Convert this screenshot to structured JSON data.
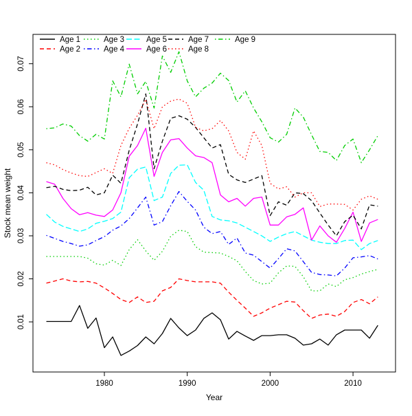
{
  "chart_data": {
    "type": "line",
    "title": "",
    "xlabel": "Year",
    "ylabel": "Stock mean weight",
    "x_ticks": [
      1980,
      1990,
      2000,
      2010
    ],
    "y_ticks": [
      0.01,
      0.02,
      0.03,
      0.04,
      0.05,
      0.06,
      0.07
    ],
    "xlim": [
      1973,
      2013
    ],
    "ylim": [
      0.002,
      0.073
    ],
    "grid": "off",
    "legend_position": "top-inside",
    "axis_color": "#000000",
    "background_color": "#ffffff",
    "x": [
      1973,
      1974,
      1975,
      1976,
      1977,
      1978,
      1979,
      1980,
      1981,
      1982,
      1983,
      1984,
      1985,
      1986,
      1987,
      1988,
      1989,
      1990,
      1991,
      1992,
      1993,
      1994,
      1995,
      1996,
      1997,
      1998,
      1999,
      2000,
      2001,
      2002,
      2003,
      2004,
      2005,
      2006,
      2007,
      2008,
      2009,
      2010,
      2011,
      2012,
      2013
    ],
    "series": [
      {
        "name": "Age 1",
        "color": "#000000",
        "style": "solid",
        "values": [
          0.0101,
          0.0101,
          0.0101,
          0.0101,
          0.0138,
          0.0085,
          0.0109,
          0.004,
          0.0065,
          0.0022,
          0.0032,
          0.0045,
          0.0065,
          0.0049,
          0.0073,
          0.0108,
          0.0086,
          0.0068,
          0.0081,
          0.0108,
          0.0121,
          0.0105,
          0.006,
          0.0078,
          0.0067,
          0.0057,
          0.0068,
          0.0068,
          0.007,
          0.007,
          0.0062,
          0.0046,
          0.0049,
          0.006,
          0.0046,
          0.007,
          0.0081,
          0.0081,
          0.0081,
          0.0062,
          0.0092
        ]
      },
      {
        "name": "Age 2",
        "color": "#ff0000",
        "style": "dashed",
        "values": [
          0.019,
          0.0195,
          0.02,
          0.0195,
          0.0193,
          0.0194,
          0.019,
          0.0179,
          0.0166,
          0.0152,
          0.0145,
          0.0158,
          0.0145,
          0.0148,
          0.0172,
          0.018,
          0.02,
          0.0196,
          0.0193,
          0.0193,
          0.0193,
          0.019,
          0.0169,
          0.015,
          0.0132,
          0.0113,
          0.0121,
          0.0132,
          0.014,
          0.0148,
          0.0146,
          0.0126,
          0.0108,
          0.0116,
          0.0118,
          0.0113,
          0.0124,
          0.0145,
          0.0152,
          0.0142,
          0.0158
        ]
      },
      {
        "name": "Age 3",
        "color": "#00cd00",
        "style": "dotted",
        "values": [
          0.0252,
          0.0252,
          0.0252,
          0.0252,
          0.0252,
          0.0248,
          0.0235,
          0.0232,
          0.0243,
          0.0231,
          0.0268,
          0.0291,
          0.0265,
          0.0243,
          0.0264,
          0.0299,
          0.0313,
          0.031,
          0.0275,
          0.0262,
          0.0261,
          0.026,
          0.0252,
          0.0242,
          0.0217,
          0.0196,
          0.0188,
          0.019,
          0.0214,
          0.023,
          0.0229,
          0.0205,
          0.0172,
          0.0172,
          0.0188,
          0.0182,
          0.0198,
          0.0203,
          0.0211,
          0.0217,
          0.0222
        ]
      },
      {
        "name": "Age 4",
        "color": "#0000ff",
        "style": "dotdash",
        "values": [
          0.0301,
          0.0294,
          0.0287,
          0.0282,
          0.0276,
          0.0279,
          0.0289,
          0.0298,
          0.0313,
          0.0323,
          0.034,
          0.0365,
          0.039,
          0.0325,
          0.0333,
          0.037,
          0.0403,
          0.038,
          0.036,
          0.032,
          0.0305,
          0.031,
          0.028,
          0.0295,
          0.026,
          0.0255,
          0.024,
          0.0225,
          0.0247,
          0.027,
          0.0265,
          0.024,
          0.0215,
          0.021,
          0.0209,
          0.0207,
          0.0225,
          0.0249,
          0.0251,
          0.0254,
          0.0246
        ]
      },
      {
        "name": "Age 5",
        "color": "#00ffff",
        "style": "longdash",
        "values": [
          0.035,
          0.0332,
          0.0322,
          0.0316,
          0.031,
          0.0316,
          0.0329,
          0.0334,
          0.034,
          0.0355,
          0.0435,
          0.0455,
          0.046,
          0.0382,
          0.039,
          0.0445,
          0.0464,
          0.0465,
          0.0424,
          0.0406,
          0.0345,
          0.0337,
          0.0335,
          0.033,
          0.032,
          0.031,
          0.03,
          0.0287,
          0.0297,
          0.0305,
          0.031,
          0.03,
          0.029,
          0.0285,
          0.0282,
          0.0282,
          0.0289,
          0.029,
          0.0268,
          0.0282,
          0.0289
        ]
      },
      {
        "name": "Age 6",
        "color": "#ff00ff",
        "style": "solid",
        "values": [
          0.0426,
          0.042,
          0.0387,
          0.0363,
          0.0349,
          0.0354,
          0.0348,
          0.0345,
          0.036,
          0.04,
          0.0485,
          0.051,
          0.055,
          0.0438,
          0.0494,
          0.0523,
          0.0526,
          0.0504,
          0.0486,
          0.0482,
          0.047,
          0.0395,
          0.0379,
          0.0387,
          0.0369,
          0.0387,
          0.039,
          0.0325,
          0.0325,
          0.0344,
          0.035,
          0.0365,
          0.029,
          0.0323,
          0.03,
          0.0285,
          0.0317,
          0.0355,
          0.0287,
          0.033,
          0.0338
        ]
      },
      {
        "name": "Age 7",
        "color": "#000000",
        "style": "dashed",
        "values": [
          0.0412,
          0.0415,
          0.0408,
          0.0405,
          0.0406,
          0.0413,
          0.0395,
          0.04,
          0.0441,
          0.0422,
          0.0499,
          0.056,
          0.063,
          0.0456,
          0.052,
          0.0573,
          0.0579,
          0.0571,
          0.0552,
          0.0528,
          0.0504,
          0.0512,
          0.0443,
          0.043,
          0.0424,
          0.0432,
          0.044,
          0.0347,
          0.0379,
          0.0371,
          0.04,
          0.0398,
          0.0382,
          0.0353,
          0.0325,
          0.03,
          0.0333,
          0.0348,
          0.0316,
          0.0372,
          0.0369
        ]
      },
      {
        "name": "Age 8",
        "color": "#ff0000",
        "style": "dotted",
        "values": [
          0.047,
          0.0465,
          0.0454,
          0.0446,
          0.044,
          0.0438,
          0.0447,
          0.0456,
          0.0445,
          0.051,
          0.055,
          0.058,
          0.0617,
          0.0549,
          0.06,
          0.0613,
          0.0618,
          0.0608,
          0.0552,
          0.0544,
          0.0549,
          0.0568,
          0.0544,
          0.0494,
          0.0478,
          0.0544,
          0.051,
          0.0422,
          0.0409,
          0.0414,
          0.039,
          0.04,
          0.04,
          0.0368,
          0.0374,
          0.0374,
          0.0373,
          0.036,
          0.0385,
          0.0393,
          0.0385
        ]
      },
      {
        "name": "Age 9",
        "color": "#00cd00",
        "style": "dotdash",
        "values": [
          0.0549,
          0.0551,
          0.056,
          0.0555,
          0.0533,
          0.052,
          0.0536,
          0.0525,
          0.066,
          0.0623,
          0.0699,
          0.063,
          0.0659,
          0.0597,
          0.0718,
          0.068,
          0.0728,
          0.066,
          0.0623,
          0.0643,
          0.0655,
          0.0678,
          0.0661,
          0.0611,
          0.0637,
          0.0597,
          0.0565,
          0.0528,
          0.0518,
          0.0536,
          0.0597,
          0.0576,
          0.0535,
          0.0496,
          0.0494,
          0.0475,
          0.051,
          0.0525,
          0.047,
          0.05,
          0.0533
        ]
      }
    ],
    "legend": {
      "items": [
        {
          "label": "Age 1",
          "series": 0,
          "row": 0,
          "col": 0
        },
        {
          "label": "Age 2",
          "series": 1,
          "row": 1,
          "col": 0
        },
        {
          "label": "Age 3",
          "series": 2,
          "row": 0,
          "col": 1
        },
        {
          "label": "Age 4",
          "series": 3,
          "row": 1,
          "col": 1
        },
        {
          "label": "Age 5",
          "series": 4,
          "row": 0,
          "col": 2
        },
        {
          "label": "Age 6",
          "series": 5,
          "row": 1,
          "col": 2
        },
        {
          "label": "Age 7",
          "series": 6,
          "row": 0,
          "col": 3
        },
        {
          "label": "Age 8",
          "series": 7,
          "row": 1,
          "col": 3
        },
        {
          "label": "Age 9",
          "series": 8,
          "row": 0,
          "col": 4
        }
      ]
    }
  }
}
